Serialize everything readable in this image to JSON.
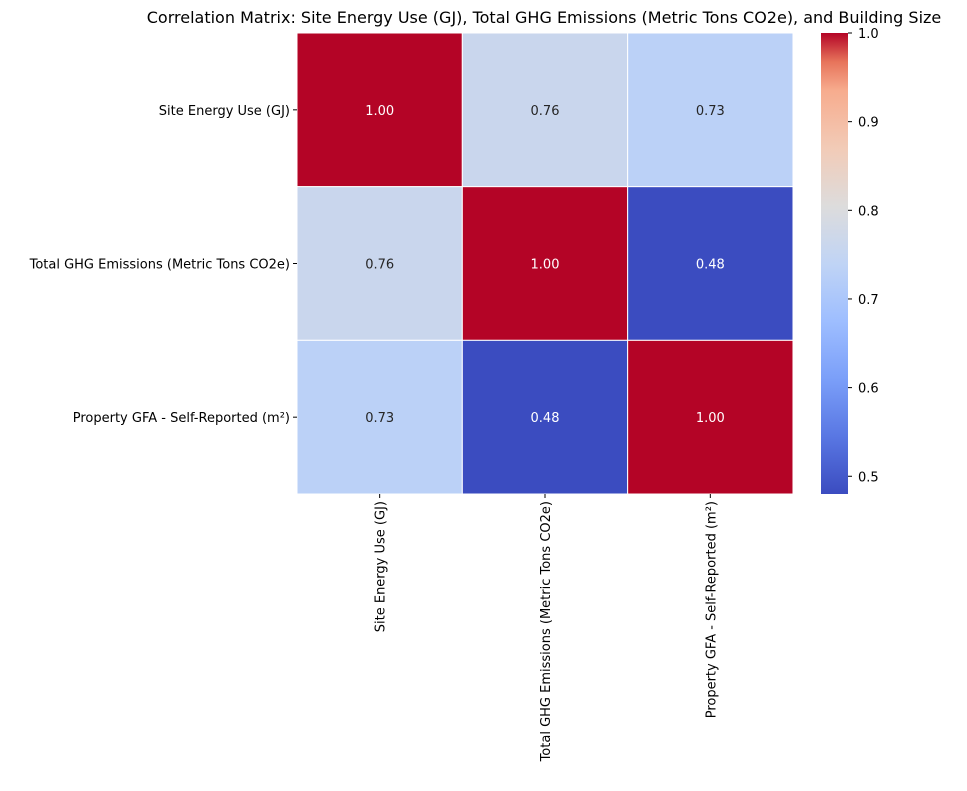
{
  "chart_data": {
    "type": "heatmap",
    "title": "Correlation Matrix: Site Energy Use (GJ), Total GHG Emissions (Metric Tons CO2e), and Building Size",
    "row_labels": [
      "Site Energy Use (GJ)",
      "Total GHG Emissions (Metric Tons CO2e)",
      "Property GFA - Self-Reported (m²)"
    ],
    "col_labels": [
      "Site Energy Use (GJ)",
      "Total GHG Emissions (Metric Tons CO2e)",
      "Property GFA - Self-Reported (m²)"
    ],
    "values": [
      [
        1.0,
        0.76,
        0.73
      ],
      [
        0.76,
        1.0,
        0.48
      ],
      [
        0.73,
        0.48,
        1.0
      ]
    ],
    "annotation_format": "0.00",
    "colormap": "coolwarm",
    "vmin": 0.48,
    "vmax": 1.0,
    "colorbar": {
      "ticks": [
        0.5,
        0.6,
        0.7,
        0.8,
        0.9,
        1.0
      ],
      "tick_labels": [
        "0.5",
        "0.6",
        "0.7",
        "0.8",
        "0.9",
        "1.0"
      ]
    },
    "xlabel": "",
    "ylabel": "",
    "grid": false
  }
}
